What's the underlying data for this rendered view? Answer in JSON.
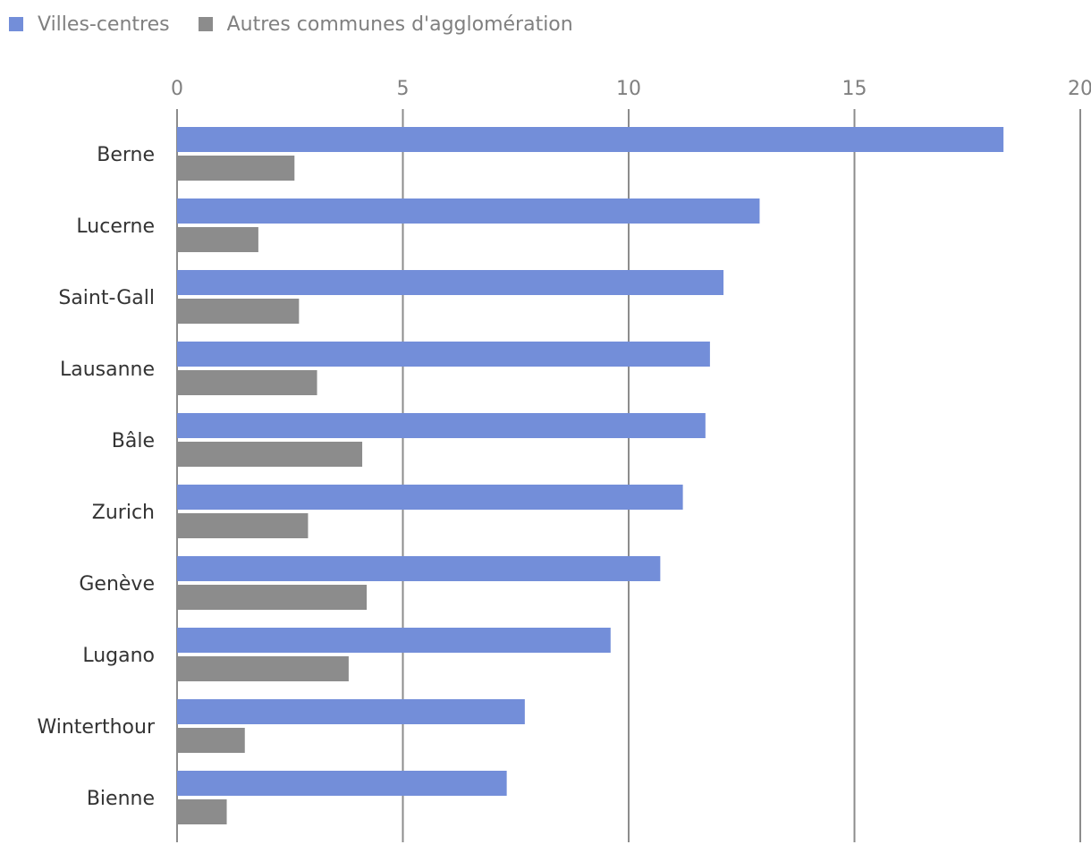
{
  "chart_data": {
    "type": "bar",
    "orientation": "horizontal",
    "categories": [
      "Berne",
      "Lucerne",
      "Saint-Gall",
      "Lausanne",
      "Bâle",
      "Zurich",
      "Genève",
      "Lugano",
      "Winterthour",
      "Bienne"
    ],
    "series": [
      {
        "name": "Villes-centres",
        "color": "#738ed9",
        "values": [
          18.3,
          12.9,
          12.1,
          11.8,
          11.7,
          11.2,
          10.7,
          9.6,
          7.7,
          7.3
        ]
      },
      {
        "name": "Autres communes d'agglomération",
        "color": "#8c8c8c",
        "values": [
          2.6,
          1.8,
          2.7,
          3.1,
          4.1,
          2.9,
          4.2,
          3.8,
          1.5,
          1.1
        ]
      }
    ],
    "xlim": [
      0,
      20
    ],
    "xticks": [
      "0",
      "5",
      "10",
      "15",
      "20"
    ],
    "grid": true,
    "axis_position": "top",
    "legend_position": "top-left"
  }
}
